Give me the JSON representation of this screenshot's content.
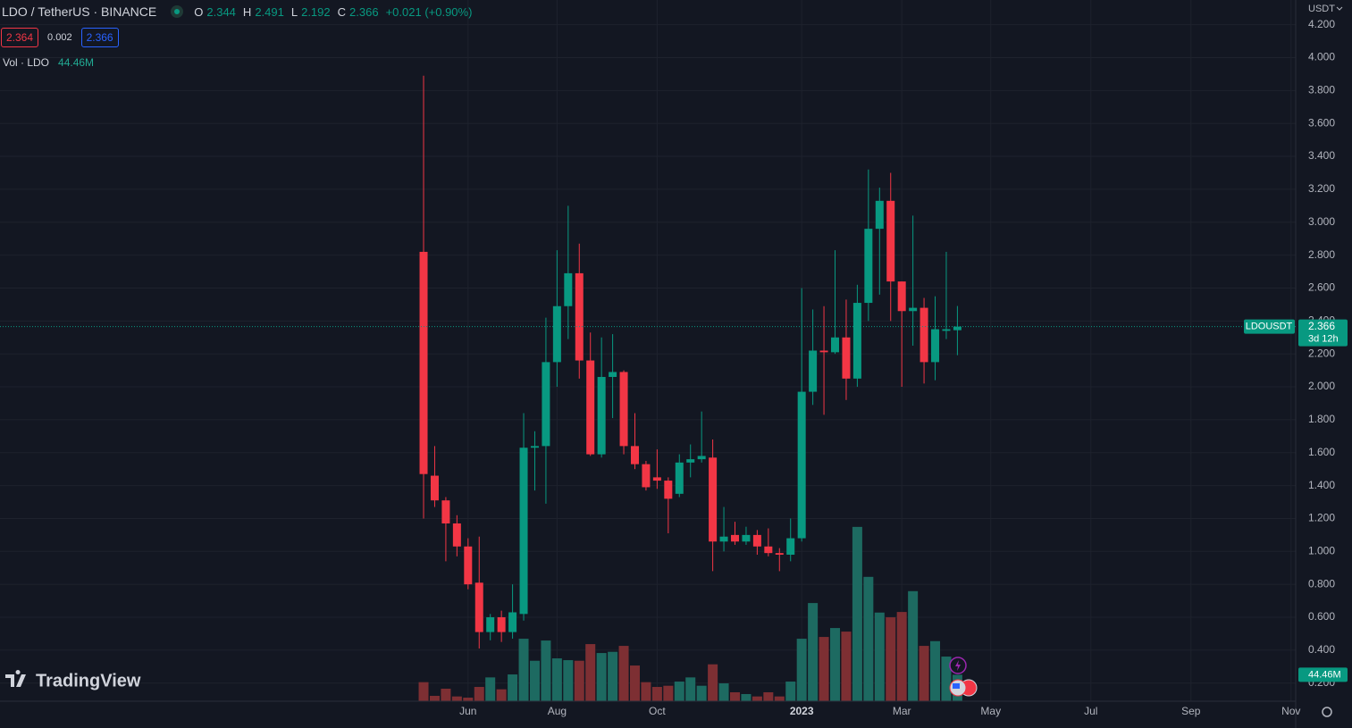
{
  "chart_data": {
    "type": "candlestick",
    "title": "LDO / TetherUS · BINANCE",
    "legend_keys": [
      "O",
      "H",
      "L",
      "C"
    ],
    "change": "+0.021 (+0.90%)",
    "bid": 2.364,
    "spread": 0.002,
    "ask": 2.366,
    "volume_title": "Vol · LDO",
    "currency": "USDT",
    "symbol_tag": "LDOUSDT",
    "countdown": "3d 12h",
    "watermark": "TradingView",
    "up_color": "#089981",
    "down_color": "#f23645",
    "open": [
      2.82,
      1.46,
      1.31,
      1.17,
      1.03,
      0.81,
      0.51,
      0.6,
      0.51,
      0.62,
      1.63,
      1.64,
      2.15,
      2.49,
      2.69,
      2.16,
      1.59,
      2.06,
      2.09,
      1.64,
      1.53,
      1.45,
      1.43,
      1.35,
      1.54,
      1.56,
      1.57,
      1.06,
      1.1,
      1.06,
      1.1,
      1.03,
      0.99,
      0.98,
      1.08,
      1.97,
      2.22,
      2.21,
      2.3,
      2.05,
      2.51,
      2.96,
      3.13,
      2.64,
      2.46,
      2.48,
      2.15,
      2.34,
      2.344
    ],
    "high": [
      3.89,
      1.64,
      1.33,
      1.22,
      1.08,
      1.09,
      0.62,
      0.64,
      0.8,
      1.84,
      1.73,
      2.42,
      2.83,
      3.1,
      2.87,
      2.33,
      2.3,
      2.32,
      2.1,
      1.84,
      1.55,
      1.62,
      1.45,
      1.59,
      1.65,
      1.85,
      1.68,
      1.27,
      1.18,
      1.15,
      1.13,
      1.14,
      1.02,
      1.2,
      2.6,
      2.47,
      2.49,
      2.83,
      2.53,
      2.62,
      3.32,
      3.21,
      3.3,
      2.64,
      3.04,
      2.54,
      2.55,
      2.82,
      2.491
    ],
    "low": [
      1.2,
      1.27,
      0.94,
      0.97,
      0.77,
      0.41,
      0.46,
      0.45,
      0.47,
      0.58,
      1.37,
      1.29,
      2.0,
      2.29,
      2.05,
      1.58,
      1.57,
      1.81,
      1.59,
      1.5,
      1.37,
      1.38,
      1.11,
      1.33,
      1.45,
      1.54,
      0.88,
      1.0,
      1.04,
      1.04,
      0.98,
      0.97,
      0.88,
      0.94,
      1.06,
      1.89,
      1.83,
      2.2,
      1.92,
      2.0,
      2.4,
      2.56,
      2.4,
      2.0,
      2.25,
      2.02,
      2.04,
      2.29,
      2.192
    ],
    "close": [
      1.47,
      1.31,
      1.17,
      1.03,
      0.8,
      0.51,
      0.6,
      0.51,
      0.63,
      1.63,
      1.64,
      2.15,
      2.49,
      2.69,
      2.16,
      1.59,
      2.06,
      2.09,
      1.64,
      1.53,
      1.39,
      1.43,
      1.32,
      1.54,
      1.56,
      1.58,
      1.06,
      1.09,
      1.06,
      1.1,
      1.03,
      0.99,
      0.98,
      1.08,
      1.97,
      2.22,
      2.21,
      2.3,
      2.05,
      2.51,
      2.96,
      3.13,
      2.64,
      2.46,
      2.48,
      2.15,
      2.35,
      2.35,
      2.366
    ],
    "volume": {
      "values": [
        32,
        9,
        21,
        8,
        6,
        24,
        40,
        20,
        45,
        105,
        68,
        102,
        72,
        69,
        68,
        96,
        81,
        83,
        93,
        60,
        32,
        24,
        26,
        33,
        40,
        26,
        62,
        30,
        15,
        12,
        8,
        15,
        8,
        33,
        105,
        165,
        108,
        123,
        117,
        293,
        209,
        149,
        141,
        150,
        185,
        93,
        101,
        75,
        44.46
      ],
      "value_labels": [
        null,
        null,
        null,
        null,
        null,
        null,
        null,
        null,
        null,
        null,
        null,
        null,
        null,
        null,
        null,
        null,
        null,
        null,
        null,
        null,
        null,
        null,
        null,
        null,
        null,
        null,
        null,
        null,
        null,
        null,
        null,
        null,
        null,
        null,
        null,
        null,
        null,
        null,
        null,
        null,
        null,
        null,
        null,
        null,
        null,
        null,
        null,
        null,
        "44.46M"
      ],
      "lim": [
        0,
        500
      ],
      "up_color": "#1d6a61",
      "down_color": "#7d2f33"
    },
    "xlim": [
      -0.5,
      78.5
    ],
    "xticks": [
      {
        "value": 4,
        "label": "Jun"
      },
      {
        "value": 12,
        "label": "Aug"
      },
      {
        "value": 21,
        "label": "Oct"
      },
      {
        "value": 34,
        "label": "2023"
      },
      {
        "value": 43,
        "label": "Mar"
      },
      {
        "value": 51,
        "label": "May"
      },
      {
        "value": 60,
        "label": "Jul"
      },
      {
        "value": 69,
        "label": "Sep"
      },
      {
        "value": 78,
        "label": "Nov"
      }
    ],
    "ylim": [
      0.09,
      4.35
    ],
    "yticks": [
      {
        "value": 0.2,
        "label": "0.200"
      },
      {
        "value": 0.4,
        "label": "0.400"
      },
      {
        "value": 0.6,
        "label": "0.600"
      },
      {
        "value": 0.8,
        "label": "0.800"
      },
      {
        "value": 1,
        "label": "1.000"
      },
      {
        "value": 1.2,
        "label": "1.200"
      },
      {
        "value": 1.4,
        "label": "1.400"
      },
      {
        "value": 1.6,
        "label": "1.600"
      },
      {
        "value": 1.8,
        "label": "1.800"
      },
      {
        "value": 2,
        "label": "2.000"
      },
      {
        "value": 2.2,
        "label": "2.200"
      },
      {
        "value": 2.4,
        "label": "2.400"
      },
      {
        "value": 2.6,
        "label": "2.600"
      },
      {
        "value": 2.8,
        "label": "2.800"
      },
      {
        "value": 3,
        "label": "3.000"
      },
      {
        "value": 3.2,
        "label": "3.200"
      },
      {
        "value": 3.4,
        "label": "3.400"
      },
      {
        "value": 3.6,
        "label": "3.600"
      },
      {
        "value": 3.8,
        "label": "3.800"
      },
      {
        "value": 4,
        "label": "4.000"
      },
      {
        "value": 4.2,
        "label": "4.200"
      }
    ],
    "grid": true
  }
}
